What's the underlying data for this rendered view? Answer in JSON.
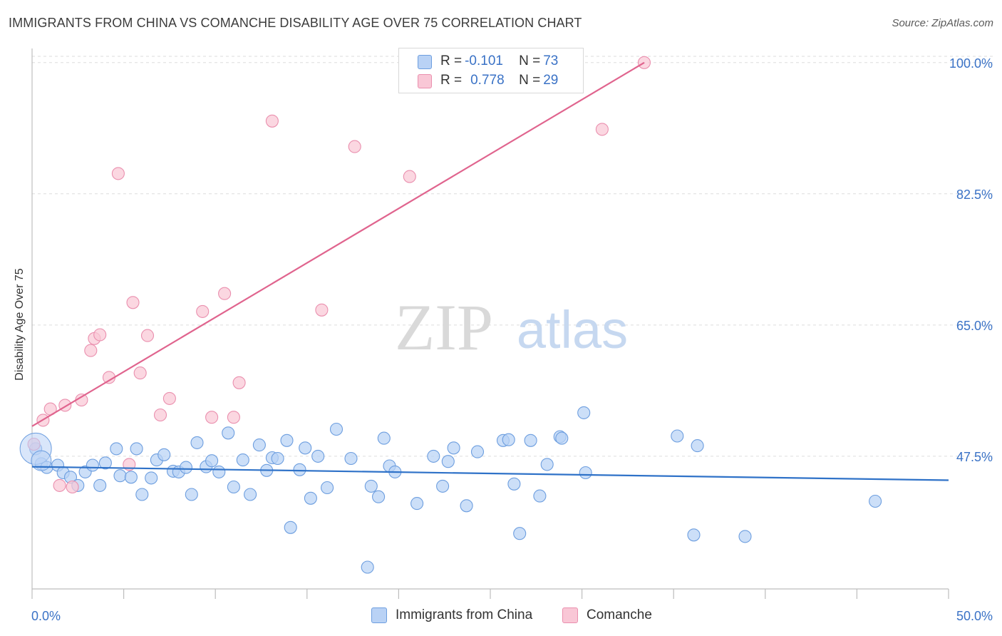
{
  "header": {
    "title": "IMMIGRANTS FROM CHINA VS COMANCHE DISABILITY AGE OVER 75 CORRELATION CHART",
    "source": "Source: ZipAtlas.com"
  },
  "watermark": {
    "zip": "ZIP",
    "atlas": "atlas"
  },
  "colors": {
    "blue_fill": "#b9d2f5",
    "blue_stroke": "#6d9edf",
    "blue_line": "#2f72c8",
    "pink_fill": "#f9c7d6",
    "pink_stroke": "#ea8fae",
    "pink_line": "#e0648e",
    "axis_label": "#3a72c6",
    "grid": "#dedede"
  },
  "legend": {
    "rows": [
      {
        "r_label": "R = ",
        "r_value": "-0.101",
        "n_label": "N = ",
        "n_value": "73"
      },
      {
        "r_label": "R = ",
        "r_value": "0.778",
        "n_label": "N = ",
        "n_value": "29"
      }
    ]
  },
  "bottom_legend": [
    "Immigrants from China",
    "Comanche"
  ],
  "chart_data": {
    "type": "scatter",
    "title": "IMMIGRANTS FROM CHINA VS COMANCHE DISABILITY AGE OVER 75 CORRELATION CHART",
    "xlabel": "",
    "ylabel": "Disability Age Over 75",
    "xlim": [
      0,
      50
    ],
    "ylim": [
      29.8,
      101.5
    ],
    "x_tick_labels": [
      "0.0%",
      "50.0%"
    ],
    "y_ticks": [
      47.5,
      65.0,
      82.5,
      100.0
    ],
    "y_tick_labels": [
      "47.5%",
      "65.0%",
      "82.5%",
      "100.0%"
    ],
    "grid": true,
    "legend_position": "top-center",
    "series": [
      {
        "name": "Immigrants from China",
        "stats": {
          "R": -0.101,
          "N": 73
        },
        "trend": [
          [
            0,
            46.1
          ],
          [
            50,
            44.3
          ]
        ],
        "points": [
          [
            0.2,
            48.5
          ],
          [
            0.5,
            46.5
          ],
          [
            0.8,
            46.0
          ],
          [
            1.4,
            46.3
          ],
          [
            1.7,
            45.3
          ],
          [
            2.1,
            44.7
          ],
          [
            2.5,
            43.6
          ],
          [
            2.9,
            45.4
          ],
          [
            3.3,
            46.3
          ],
          [
            3.7,
            43.6
          ],
          [
            4.0,
            46.6
          ],
          [
            4.6,
            48.5
          ],
          [
            4.8,
            44.9
          ],
          [
            5.4,
            44.7
          ],
          [
            5.7,
            48.5
          ],
          [
            6.0,
            42.4
          ],
          [
            6.5,
            44.6
          ],
          [
            6.8,
            47.0
          ],
          [
            7.2,
            47.7
          ],
          [
            7.7,
            45.5
          ],
          [
            8.0,
            45.4
          ],
          [
            8.4,
            46.0
          ],
          [
            8.7,
            42.4
          ],
          [
            9.0,
            49.3
          ],
          [
            9.5,
            46.1
          ],
          [
            9.8,
            46.9
          ],
          [
            10.2,
            45.4
          ],
          [
            10.7,
            50.6
          ],
          [
            11.0,
            43.4
          ],
          [
            11.5,
            47.0
          ],
          [
            11.9,
            42.4
          ],
          [
            12.4,
            49.0
          ],
          [
            12.8,
            45.6
          ],
          [
            13.1,
            47.3
          ],
          [
            13.4,
            47.2
          ],
          [
            13.9,
            49.6
          ],
          [
            14.1,
            38.0
          ],
          [
            14.6,
            45.7
          ],
          [
            14.9,
            48.6
          ],
          [
            15.2,
            41.9
          ],
          [
            15.6,
            47.5
          ],
          [
            16.1,
            43.3
          ],
          [
            16.6,
            51.1
          ],
          [
            17.4,
            47.2
          ],
          [
            18.3,
            32.7
          ],
          [
            18.5,
            43.5
          ],
          [
            18.9,
            42.1
          ],
          [
            19.2,
            49.9
          ],
          [
            19.5,
            46.2
          ],
          [
            19.8,
            45.4
          ],
          [
            21.0,
            41.2
          ],
          [
            21.9,
            47.5
          ],
          [
            22.4,
            43.5
          ],
          [
            22.7,
            46.8
          ],
          [
            23.0,
            48.6
          ],
          [
            23.7,
            40.9
          ],
          [
            24.3,
            48.1
          ],
          [
            25.7,
            49.6
          ],
          [
            26.0,
            49.7
          ],
          [
            26.3,
            43.8
          ],
          [
            26.6,
            37.2
          ],
          [
            27.2,
            49.6
          ],
          [
            27.7,
            42.2
          ],
          [
            28.1,
            46.4
          ],
          [
            28.8,
            50.1
          ],
          [
            28.9,
            49.9
          ],
          [
            30.1,
            53.3
          ],
          [
            30.2,
            45.3
          ],
          [
            35.2,
            50.2
          ],
          [
            36.1,
            37.0
          ],
          [
            36.3,
            48.9
          ],
          [
            38.9,
            36.8
          ],
          [
            46.0,
            41.5
          ]
        ]
      },
      {
        "name": "Comanche",
        "stats": {
          "R": 0.778,
          "N": 29
        },
        "trend": [
          [
            0,
            51.5
          ],
          [
            33.4,
            100.0
          ]
        ],
        "points": [
          [
            0.1,
            49.1
          ],
          [
            0.6,
            52.3
          ],
          [
            1.0,
            53.8
          ],
          [
            1.5,
            43.6
          ],
          [
            1.8,
            54.3
          ],
          [
            2.2,
            43.4
          ],
          [
            2.7,
            55.0
          ],
          [
            3.2,
            61.6
          ],
          [
            3.4,
            63.2
          ],
          [
            3.7,
            63.7
          ],
          [
            4.2,
            58.0
          ],
          [
            4.7,
            85.2
          ],
          [
            5.3,
            46.4
          ],
          [
            5.5,
            68.0
          ],
          [
            5.9,
            58.6
          ],
          [
            6.3,
            63.6
          ],
          [
            7.0,
            53.0
          ],
          [
            7.5,
            55.2
          ],
          [
            9.3,
            66.8
          ],
          [
            9.8,
            52.7
          ],
          [
            10.5,
            69.2
          ],
          [
            11.0,
            52.7
          ],
          [
            11.3,
            57.3
          ],
          [
            13.1,
            92.2
          ],
          [
            15.8,
            67.0
          ],
          [
            17.6,
            88.8
          ],
          [
            20.6,
            84.8
          ],
          [
            31.1,
            91.1
          ],
          [
            33.4,
            100.0
          ]
        ]
      }
    ]
  }
}
